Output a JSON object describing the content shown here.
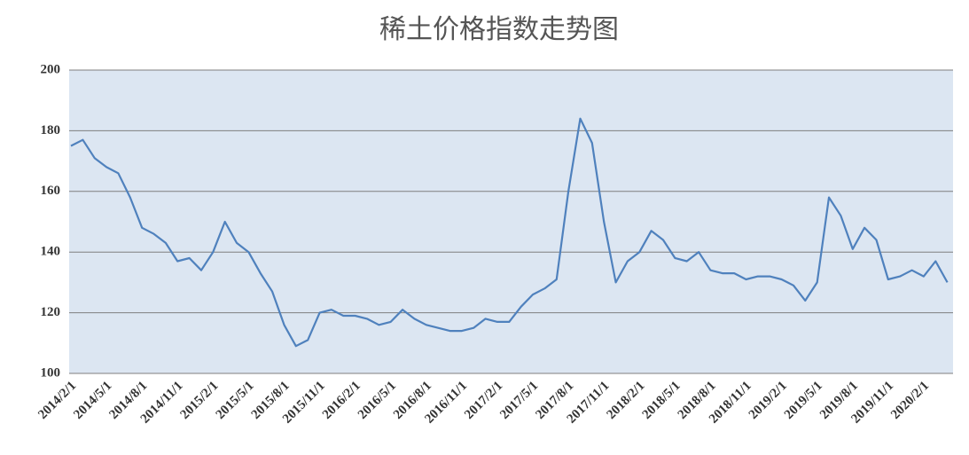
{
  "chart_data": {
    "type": "line",
    "title": "稀土价格指数走势图",
    "categories": [
      "2014/2/1",
      null,
      null,
      "2014/5/1",
      null,
      null,
      "2014/8/1",
      null,
      null,
      "2014/11/1",
      null,
      null,
      "2015/2/1",
      null,
      null,
      "2015/5/1",
      null,
      null,
      "2015/8/1",
      null,
      null,
      "2015/11/1",
      null,
      null,
      "2016/2/1",
      null,
      null,
      "2016/5/1",
      null,
      null,
      "2016/8/1",
      null,
      null,
      "2016/11/1",
      null,
      null,
      "2017/2/1",
      null,
      null,
      "2017/5/1",
      null,
      null,
      "2017/8/1",
      null,
      null,
      "2017/11/1",
      null,
      null,
      "2018/2/1",
      null,
      null,
      "2018/5/1",
      null,
      null,
      "2018/8/1",
      null,
      null,
      "2018/11/1",
      null,
      null,
      "2019/2/1",
      null,
      null,
      "2019/5/1",
      null,
      null,
      "2019/8/1",
      null,
      null,
      "2019/11/1",
      null,
      null,
      "2020/2/1",
      null,
      null
    ],
    "series": [
      {
        "name": "稀土价格指数",
        "color": "#4f81bd",
        "values": [
          175,
          177,
          171,
          168,
          166,
          158,
          148,
          146,
          143,
          137,
          138,
          134,
          140,
          150,
          143,
          140,
          133,
          127,
          116,
          109,
          111,
          120,
          121,
          119,
          119,
          118,
          116,
          117,
          121,
          118,
          116,
          115,
          114,
          114,
          115,
          118,
          117,
          117,
          122,
          126,
          128,
          131,
          160,
          184,
          176,
          150,
          130,
          137,
          140,
          147,
          144,
          138,
          137,
          140,
          134,
          133,
          133,
          131,
          132,
          132,
          131,
          129,
          124,
          130,
          158,
          152,
          141,
          148,
          144,
          131,
          132,
          134,
          132,
          137,
          130
        ]
      }
    ],
    "ylim": [
      100,
      200
    ],
    "yticks": [
      100,
      120,
      140,
      160,
      180,
      200
    ],
    "grid": true
  }
}
